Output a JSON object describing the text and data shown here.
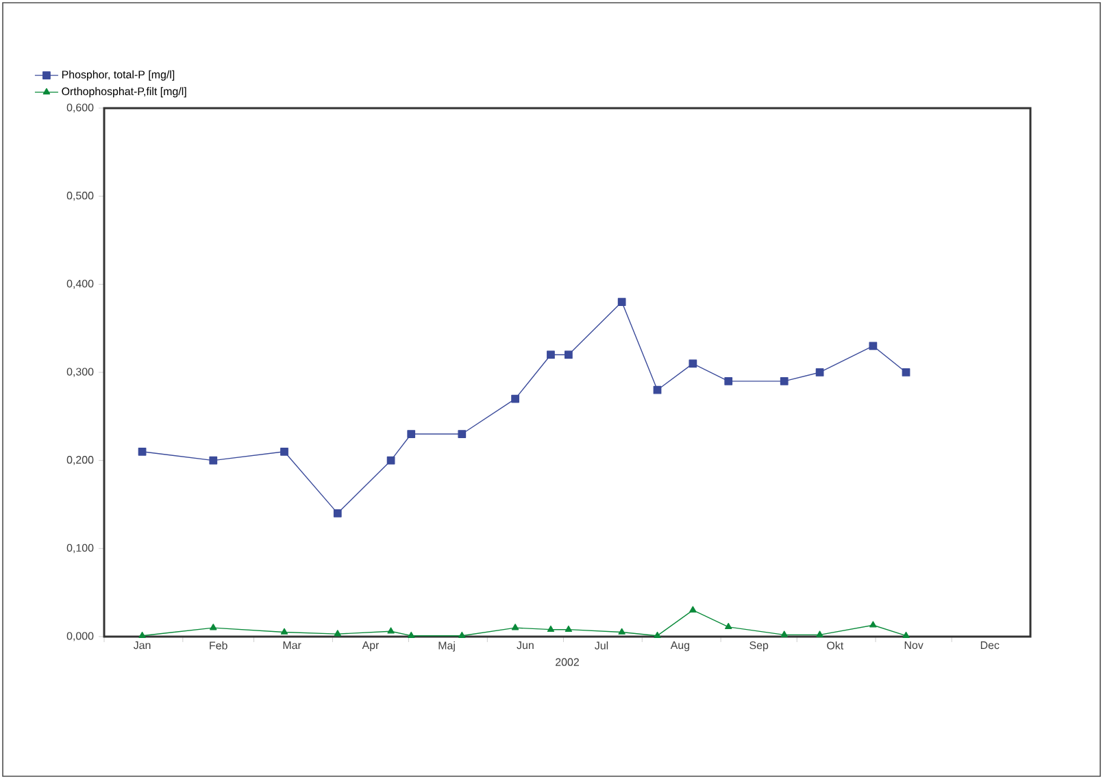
{
  "chart_data": {
    "type": "line",
    "xlabel": "2002",
    "x": [
      "2002-01-16",
      "2002-02-13",
      "2002-03-13",
      "2002-04-03",
      "2002-04-24",
      "2002-05-02",
      "2002-05-22",
      "2002-06-12",
      "2002-06-26",
      "2002-07-03",
      "2002-07-24",
      "2002-08-07",
      "2002-08-21",
      "2002-09-04",
      "2002-09-26",
      "2002-10-10",
      "2002-10-31",
      "2002-11-13"
    ],
    "series": [
      {
        "name": "Phosphor, total-P [mg/l]",
        "color": "#3a4a9a",
        "marker": "square",
        "values": [
          0.21,
          0.2,
          0.21,
          0.14,
          0.2,
          0.23,
          0.23,
          0.27,
          0.32,
          0.32,
          0.38,
          0.28,
          0.31,
          0.29,
          0.29,
          0.3,
          0.33,
          0.3
        ]
      },
      {
        "name": "Orthophosphat-P,filt [mg/l]",
        "color": "#0a8a3a",
        "marker": "triangle",
        "values": [
          0.001,
          0.01,
          0.005,
          0.003,
          0.006,
          0.001,
          0.001,
          0.01,
          0.008,
          0.008,
          0.005,
          0.001,
          0.03,
          0.011,
          0.002,
          0.002,
          0.013,
          0.001
        ]
      }
    ],
    "xlim": [
      "2002-01-01",
      "2003-01-01"
    ],
    "xticks": [
      {
        "value": "2002-01-01",
        "label": null
      },
      {
        "value": "2002-02-01",
        "label": null
      },
      {
        "value": "2002-03-01",
        "label": null
      },
      {
        "value": "2002-04-01",
        "label": null
      },
      {
        "value": "2002-05-01",
        "label": null
      },
      {
        "value": "2002-06-01",
        "label": null
      },
      {
        "value": "2002-07-01",
        "label": null
      },
      {
        "value": "2002-08-01",
        "label": null
      },
      {
        "value": "2002-09-01",
        "label": null
      },
      {
        "value": "2002-10-01",
        "label": null
      },
      {
        "value": "2002-11-01",
        "label": null
      },
      {
        "value": "2002-12-01",
        "label": null
      },
      {
        "value": "2002-01-16",
        "label": "Jan"
      },
      {
        "value": "2002-02-15",
        "label": "Feb"
      },
      {
        "value": "2002-03-16",
        "label": "Mar"
      },
      {
        "value": "2002-04-16",
        "label": "Apr"
      },
      {
        "value": "2002-05-16",
        "label": "Maj"
      },
      {
        "value": "2002-06-16",
        "label": "Jun"
      },
      {
        "value": "2002-07-16",
        "label": "Jul"
      },
      {
        "value": "2002-08-16",
        "label": "Aug"
      },
      {
        "value": "2002-09-16",
        "label": "Sep"
      },
      {
        "value": "2002-10-16",
        "label": "Okt"
      },
      {
        "value": "2002-11-16",
        "label": "Nov"
      },
      {
        "value": "2002-12-16",
        "label": "Dec"
      }
    ],
    "ylim": [
      0,
      0.6
    ],
    "yticks": [
      {
        "value": 0,
        "label": "0,000"
      },
      {
        "value": 0.1,
        "label": "0,100"
      },
      {
        "value": 0.2,
        "label": "0,200"
      },
      {
        "value": 0.3,
        "label": "0,300"
      },
      {
        "value": 0.4,
        "label": "0,400"
      },
      {
        "value": 0.5,
        "label": "0,500"
      },
      {
        "value": 0.6,
        "label": "0,600"
      }
    ],
    "grid": false,
    "legend": "top left",
    "line_style": "solid"
  }
}
